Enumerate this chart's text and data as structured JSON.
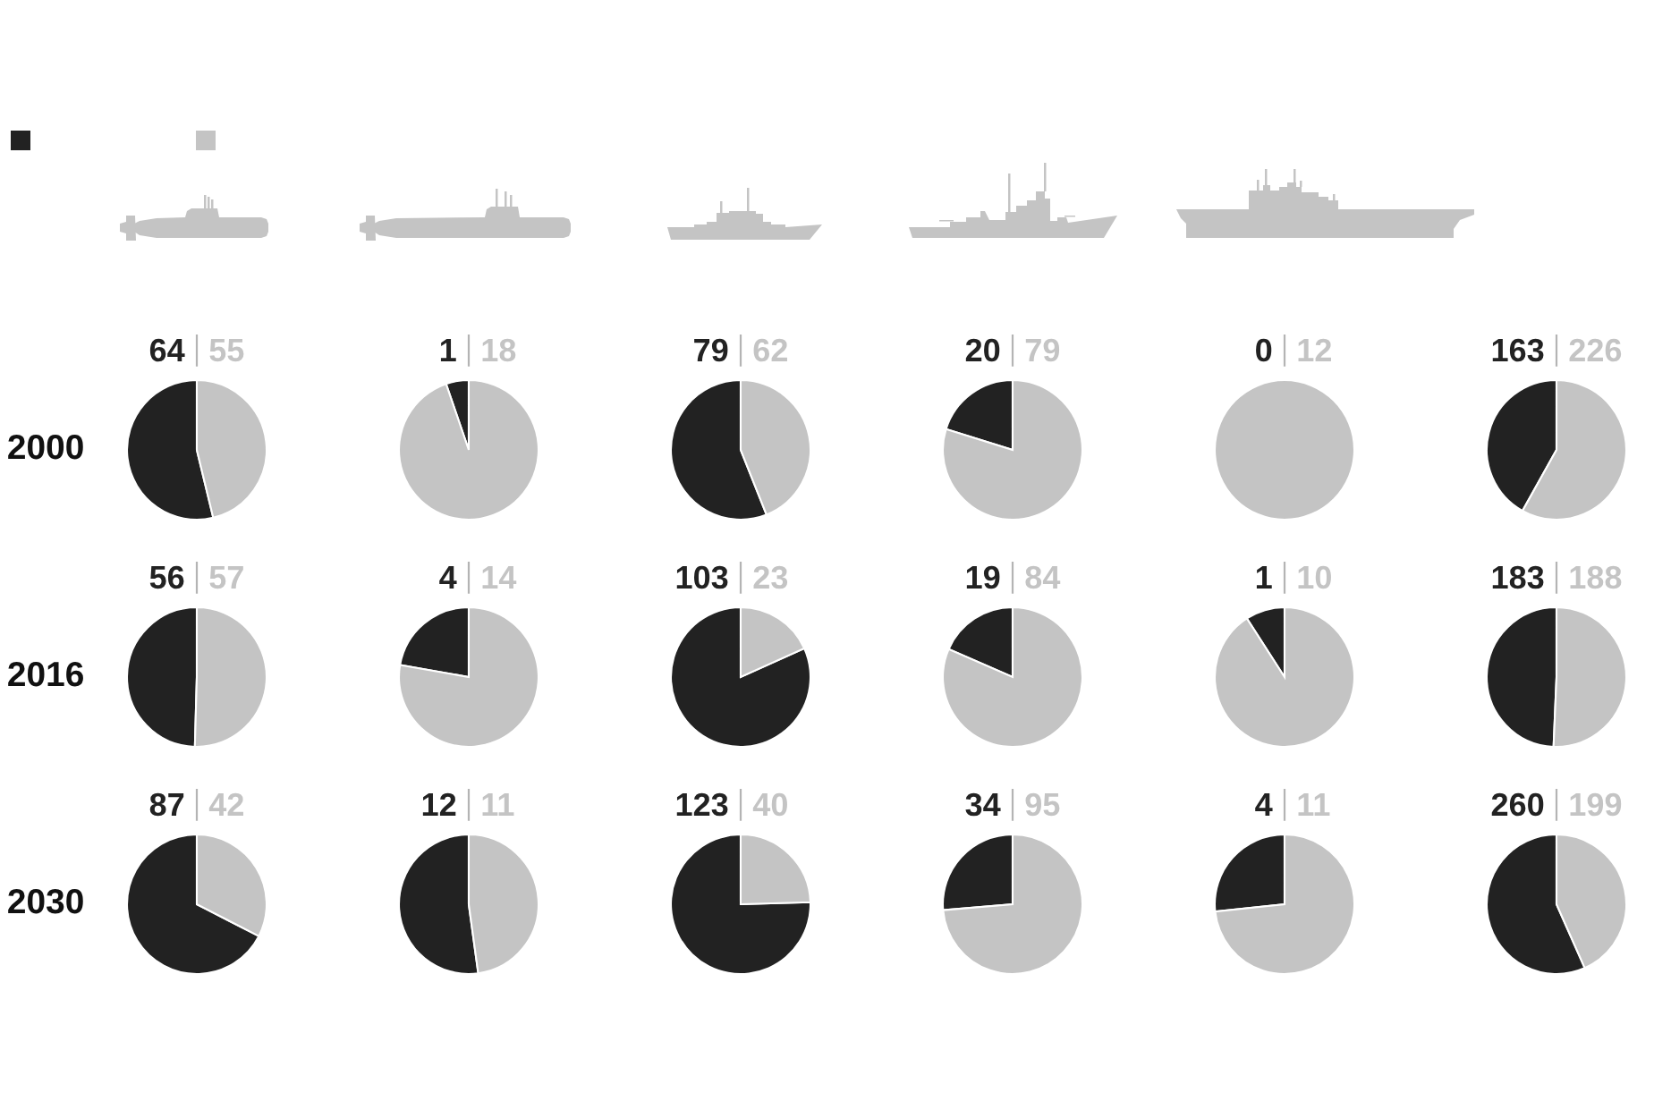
{
  "chart_data": [
    {
      "type": "pie",
      "categories": [
        null,
        null
      ],
      "values": [
        64,
        55
      ],
      "colors": [
        "#222222",
        "#c4c4c4"
      ],
      "data_labels": true,
      "ylabel": "2000"
    },
    {
      "type": "pie",
      "categories": [
        null,
        null
      ],
      "values": [
        1,
        18
      ],
      "colors": [
        "#222222",
        "#c4c4c4"
      ],
      "data_labels": true
    },
    {
      "type": "pie",
      "categories": [
        null,
        null
      ],
      "values": [
        79,
        62
      ],
      "colors": [
        "#222222",
        "#c4c4c4"
      ],
      "data_labels": true
    },
    {
      "type": "pie",
      "categories": [
        null,
        null
      ],
      "values": [
        20,
        79
      ],
      "colors": [
        "#222222",
        "#c4c4c4"
      ],
      "data_labels": true
    },
    {
      "type": "pie",
      "categories": [
        null,
        null
      ],
      "values": [
        0,
        12
      ],
      "colors": [
        "#222222",
        "#c4c4c4"
      ],
      "value_labels": [
        "0",
        "12"
      ]
    },
    {
      "type": "pie",
      "categories": [
        null,
        null
      ],
      "values": [
        163,
        226
      ],
      "colors": [
        "#222222",
        "#c4c4c4"
      ],
      "data_labels": true
    },
    {
      "type": "pie",
      "categories": [
        null,
        null
      ],
      "values": [
        56,
        57
      ],
      "colors": [
        "#222222",
        "#c4c4c4"
      ],
      "data_labels": true,
      "ylabel": "2016"
    },
    {
      "type": "pie",
      "categories": [
        null,
        null
      ],
      "values": [
        4,
        14
      ],
      "colors": [
        "#222222",
        "#c4c4c4"
      ],
      "data_labels": true
    },
    {
      "type": "pie",
      "categories": [
        null,
        null
      ],
      "values": [
        103,
        23
      ],
      "colors": [
        "#222222",
        "#c4c4c4"
      ],
      "data_labels": true
    },
    {
      "type": "pie",
      "categories": [
        null,
        null
      ],
      "values": [
        19,
        84
      ],
      "colors": [
        "#222222",
        "#c4c4c4"
      ],
      "data_labels": true
    },
    {
      "type": "pie",
      "categories": [
        null,
        null
      ],
      "values": [
        1,
        10
      ],
      "colors": [
        "#222222",
        "#c4c4c4"
      ],
      "data_labels": true
    },
    {
      "type": "pie",
      "categories": [
        null,
        null
      ],
      "values": [
        183,
        188
      ],
      "colors": [
        "#222222",
        "#c4c4c4"
      ],
      "data_labels": true
    },
    {
      "type": "pie",
      "categories": [
        null,
        null
      ],
      "values": [
        87,
        42
      ],
      "colors": [
        "#222222",
        "#c4c4c4"
      ],
      "data_labels": true,
      "ylabel": "2030"
    },
    {
      "type": "pie",
      "categories": [
        null,
        null
      ],
      "values": [
        12,
        11
      ],
      "colors": [
        "#222222",
        "#c4c4c4"
      ],
      "data_labels": true
    },
    {
      "type": "pie",
      "categories": [
        null,
        null
      ],
      "values": [
        123,
        40
      ],
      "colors": [
        "#222222",
        "#c4c4c4"
      ],
      "data_labels": true
    },
    {
      "type": "pie",
      "categories": [
        null,
        null
      ],
      "values": [
        34,
        95
      ],
      "colors": [
        "#222222",
        "#c4c4c4"
      ],
      "data_labels": true
    },
    {
      "type": "pie",
      "categories": [
        null,
        null
      ],
      "values": [
        4,
        11
      ],
      "colors": [
        "#222222",
        "#c4c4c4"
      ],
      "data_labels": true
    },
    {
      "type": "pie",
      "categories": [
        null,
        null
      ],
      "values": [
        260,
        199
      ],
      "colors": [
        "#222222",
        "#c4c4c4"
      ],
      "data_labels": true
    }
  ]
}
